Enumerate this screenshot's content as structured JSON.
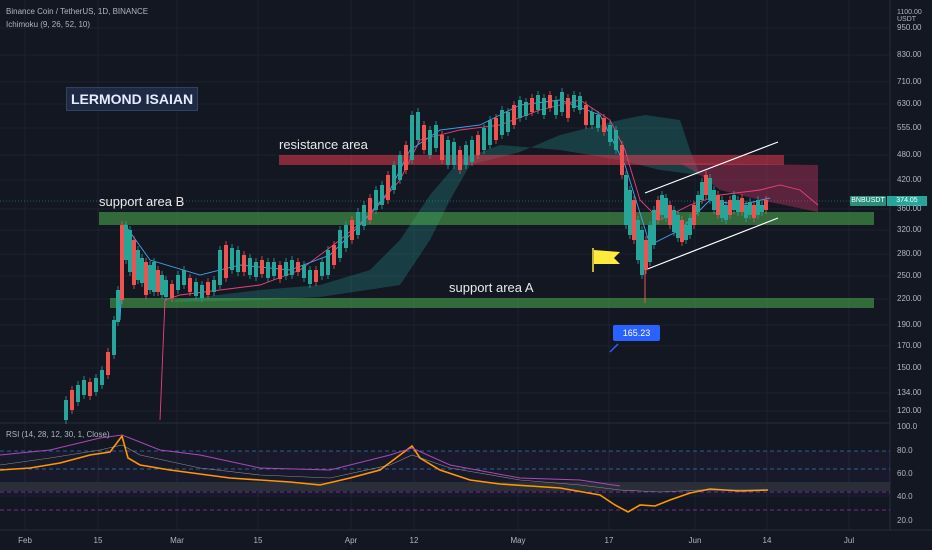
{
  "header": {
    "symbol_line": "Binance Coin / TetherUS, 1D, BINANCE",
    "indicator_ichimoku": "Ichimoku (9, 26, 52, 10)",
    "indicator_rsi": "RSI (14, 28, 12, 30, 1, Close)"
  },
  "watermark": "LERMOND ISAIAN",
  "annotations": {
    "resistance": "resistance area",
    "support_b": "support area B",
    "support_a": "support area A",
    "low_callout": "165.23"
  },
  "price_axis": {
    "currency": "USDT",
    "top_value": "1100.00",
    "ticks": [
      "950.00",
      "830.00",
      "710.00",
      "630.00",
      "555.00",
      "480.00",
      "420.00",
      "360.00",
      "320.00",
      "280.00",
      "250.00",
      "220.00",
      "190.00",
      "170.00",
      "150.00",
      "134.00",
      "120.00"
    ],
    "current_symbol": "BNBUSDT",
    "current_price": "374.05"
  },
  "rsi_axis": {
    "ticks": [
      "100.0",
      "80.0",
      "60.0",
      "40.0",
      "20.0"
    ]
  },
  "time_axis": {
    "ticks": [
      "Feb",
      "15",
      "Mar",
      "15",
      "Apr",
      "12",
      "May",
      "17",
      "Jun",
      "14",
      "Jul"
    ]
  },
  "colors": {
    "background": "#131722",
    "up_candle": "#26a69a",
    "down_candle": "#ef5350",
    "support_zone": "#4caf50",
    "resistance_zone": "#e53950",
    "rsi_line": "#ff9800",
    "callout": "#2962ff"
  },
  "icons": [
    "flag-icon"
  ]
}
